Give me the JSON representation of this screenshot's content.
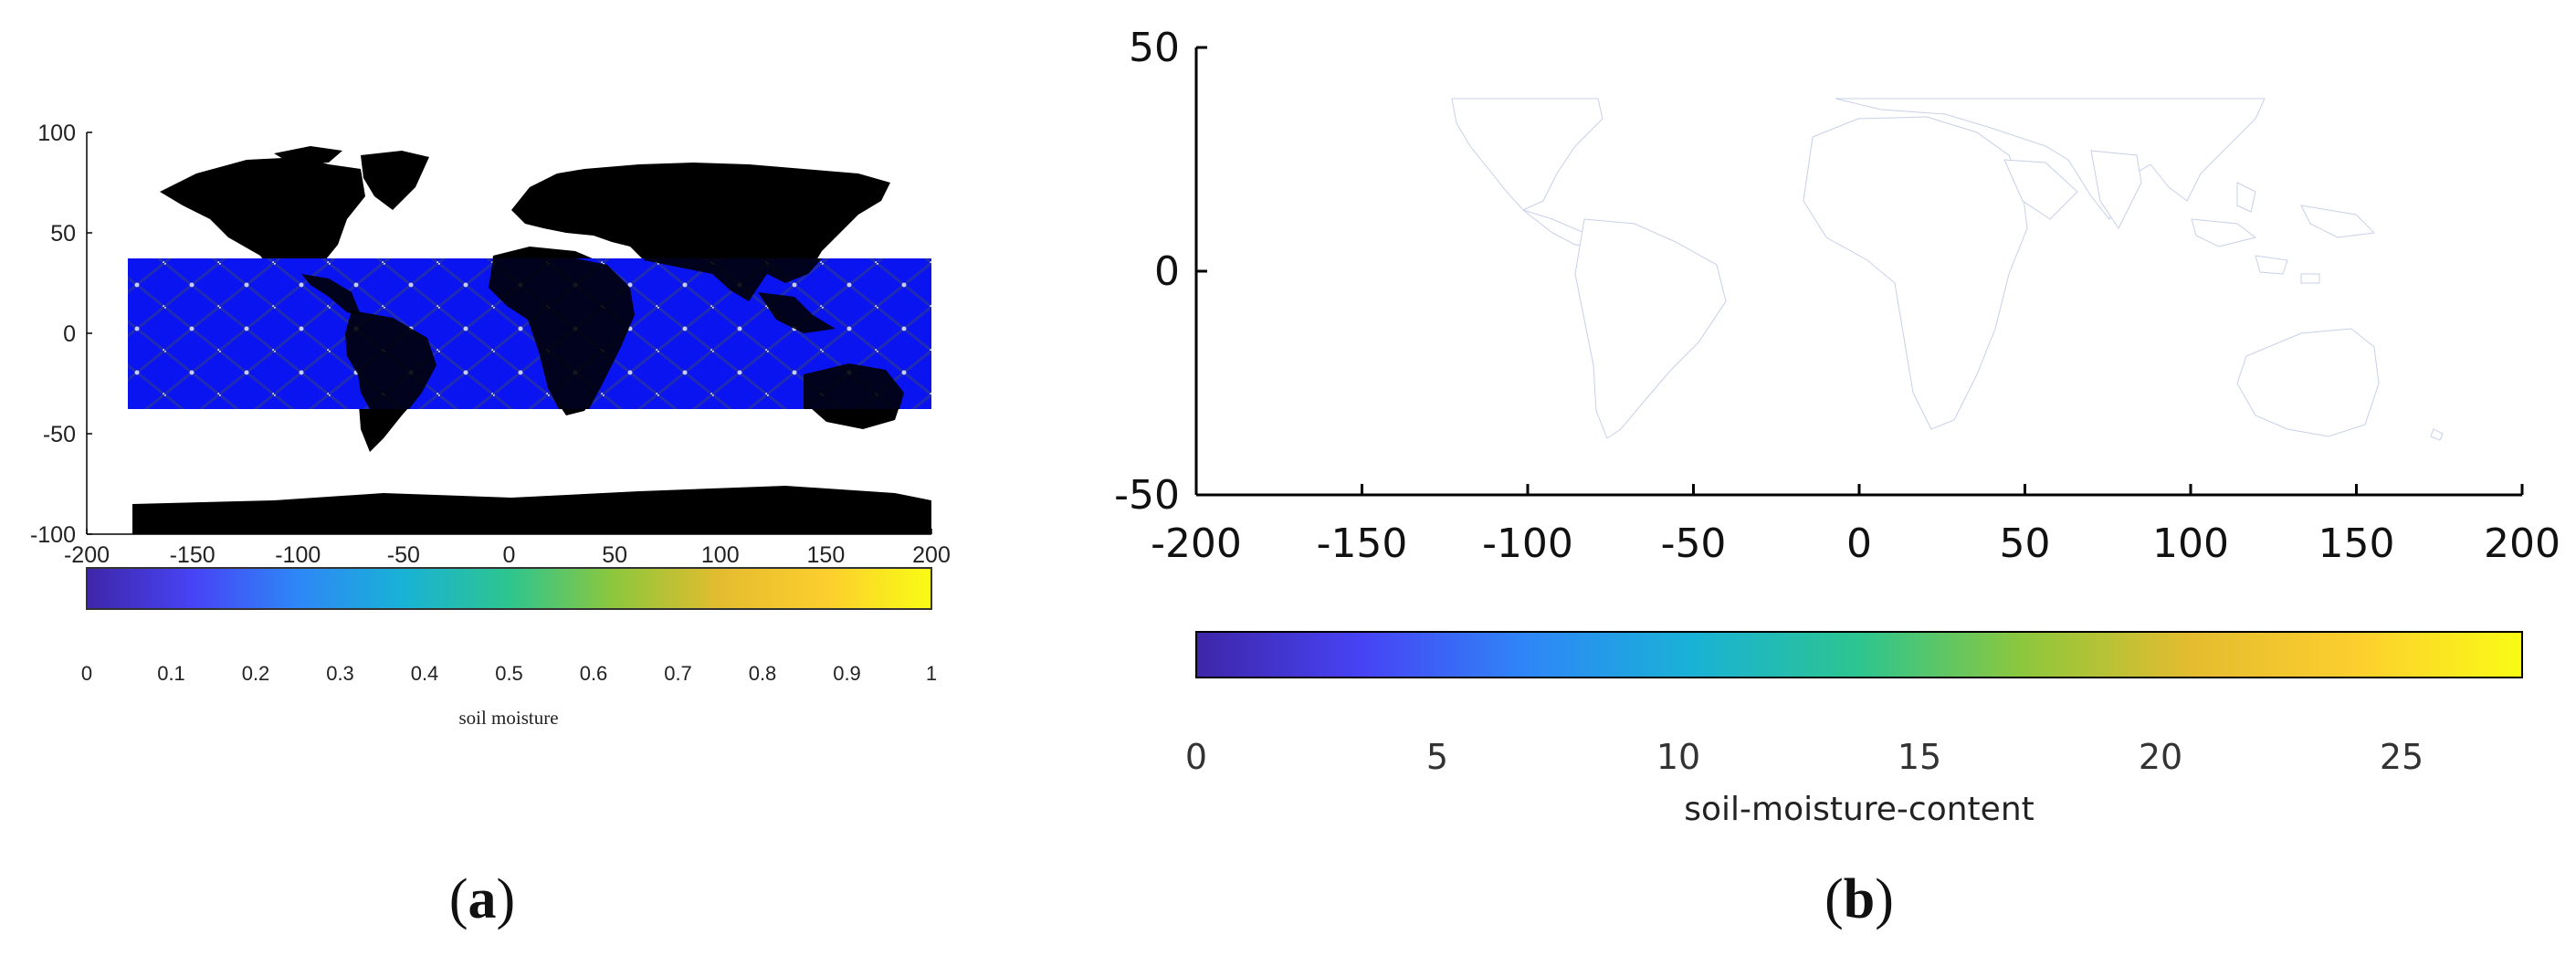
{
  "panels": [
    {
      "id": "a",
      "label": "a",
      "chart_data": {
        "type": "heatmap",
        "title": "",
        "xlabel": "",
        "ylabel": "",
        "xlim": [
          -200,
          200
        ],
        "ylim": [
          -100,
          100
        ],
        "xticks": [
          "-200",
          "-150",
          "-100",
          "-50",
          "0",
          "50",
          "100",
          "150",
          "200"
        ],
        "yticks": [
          "100",
          "50",
          "0",
          "-50",
          "-100"
        ],
        "coverage_band": {
          "lon_range": [
            -180,
            180
          ],
          "lat_range": [
            -37,
            37
          ],
          "color": "#0a14f0",
          "track_color": "#1a1aa8"
        },
        "land_color": "#000000",
        "colorbar": {
          "label": "soil moisture",
          "range": [
            0,
            1
          ],
          "ticks": [
            "0",
            "0.1",
            "0.2",
            "0.3",
            "0.4",
            "0.5",
            "0.6",
            "0.7",
            "0.8",
            "0.9",
            "1"
          ],
          "colormap": [
            "#3e26a8",
            "#4743f5",
            "#2e87f7",
            "#19b2d6",
            "#2dc58f",
            "#8ec73c",
            "#e4bc2f",
            "#fcce2e",
            "#f9fb15"
          ]
        }
      }
    },
    {
      "id": "b",
      "label": "b",
      "chart_data": {
        "type": "heatmap",
        "title": "",
        "xlabel": "",
        "ylabel": "",
        "xlim": [
          -200,
          200
        ],
        "ylim": [
          -50,
          50
        ],
        "xticks": [
          "-200",
          "-150",
          "-100",
          "-50",
          "0",
          "50",
          "100",
          "150",
          "200"
        ],
        "yticks": [
          "50",
          "0",
          "-50"
        ],
        "colorbar": {
          "label": "soil-moisture-content",
          "range": [
            0,
            27.5
          ],
          "ticks": [
            "0",
            "5",
            "10",
            "15",
            "20",
            "25"
          ],
          "colormap": [
            "#3e26a8",
            "#4743f5",
            "#2e87f7",
            "#19b2d6",
            "#2dc58f",
            "#8ec73c",
            "#e4bc2f",
            "#fcce2e",
            "#f9fb15"
          ]
        }
      }
    }
  ]
}
